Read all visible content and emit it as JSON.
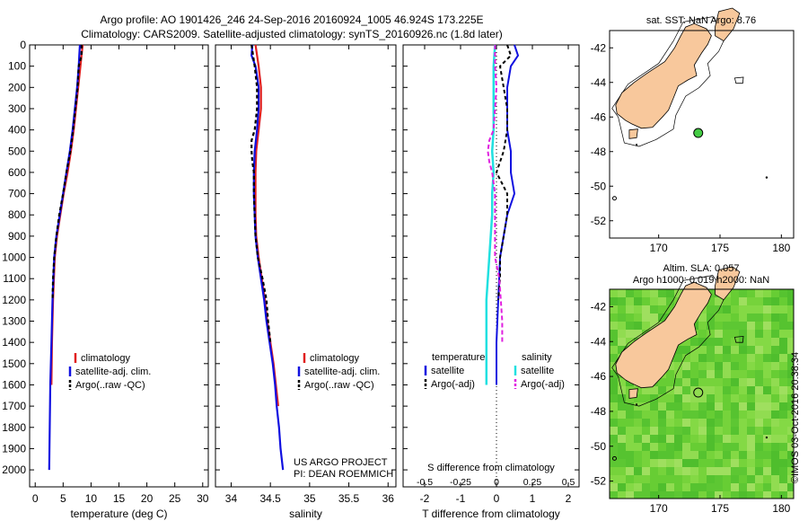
{
  "header": {
    "line1": "Argo profile: AO 1901426_246 24-Sep-2016 20160924_1005 46.924S 173.225E",
    "line2": "Climatology: CARS2009. Satellite-adjusted climatology: synTS_20160926.nc (1.8d later)"
  },
  "colors": {
    "climatology": "#e02020",
    "satellite": "#1010e0",
    "argo": "#000000",
    "sal_satellite": "#20e0e0",
    "sal_argo": "#e020e0",
    "land": "#f8c89c",
    "marker": "#44cc44",
    "sla_base": "#6ed03a"
  },
  "chart_data": [
    {
      "type": "line",
      "id": "temperature",
      "xlabel": "temperature (deg C)",
      "ylabel": "",
      "xlim": [
        -1,
        31
      ],
      "ylim": [
        2080,
        0
      ],
      "xticks": [
        "0",
        "5",
        "10",
        "15",
        "20",
        "25",
        "30"
      ],
      "yticks": [
        "0",
        "100",
        "200",
        "300",
        "400",
        "500",
        "600",
        "700",
        "800",
        "900",
        "1000",
        "1100",
        "1200",
        "1300",
        "1400",
        "1500",
        "1600",
        "1700",
        "1800",
        "1900",
        "2000"
      ],
      "legend": [
        "climatology",
        "satellite-adj. clim.",
        "Argo(..raw -QC)"
      ],
      "series": [
        {
          "name": "climatology",
          "depth": [
            0,
            50,
            100,
            200,
            300,
            400,
            500,
            600,
            700,
            800,
            900,
            1000,
            1200,
            1400,
            1600
          ],
          "values": [
            8.5,
            8.3,
            8.1,
            7.7,
            7.3,
            6.9,
            6.4,
            5.8,
            5.1,
            4.5,
            3.9,
            3.5,
            3.2,
            3.0,
            2.9
          ]
        },
        {
          "name": "satellite-adj. clim.",
          "depth": [
            0,
            50,
            100,
            200,
            300,
            400,
            500,
            600,
            700,
            800,
            900,
            1000,
            1200,
            1400,
            1600,
            1800,
            2000
          ],
          "values": [
            8.0,
            7.9,
            7.8,
            7.5,
            7.1,
            6.7,
            6.2,
            5.6,
            5.0,
            4.4,
            3.8,
            3.4,
            3.1,
            2.9,
            2.7,
            2.6,
            2.5
          ]
        },
        {
          "name": "Argo(..raw -QC)",
          "depth": [
            0,
            50,
            100,
            200,
            300,
            400,
            500,
            600,
            700,
            800,
            900,
            1000,
            1100,
            1200
          ],
          "values": [
            8.3,
            8.3,
            7.8,
            7.6,
            7.2,
            6.8,
            6.3,
            5.6,
            5.0,
            4.3,
            3.8,
            3.4,
            3.2,
            3.1
          ]
        }
      ]
    },
    {
      "type": "line",
      "id": "salinity",
      "xlabel": "salinity",
      "xlim": [
        33.8,
        36.1
      ],
      "ylim": [
        2080,
        0
      ],
      "xticks": [
        "34",
        "34.5",
        "35",
        "35.5",
        "36"
      ],
      "legend": [
        "climatology",
        "satellite-adj. clim.",
        "Argo(..raw -QC)"
      ],
      "annotation": [
        "US ARGO PROJECT",
        "PI: DEAN ROEMMICH"
      ],
      "series": [
        {
          "name": "climatology",
          "depth": [
            0,
            100,
            200,
            300,
            400,
            500,
            600,
            700,
            800,
            900,
            1000,
            1100,
            1200,
            1300,
            1400,
            1500,
            1600,
            1700
          ],
          "values": [
            34.31,
            34.35,
            34.38,
            34.38,
            34.35,
            34.32,
            34.31,
            34.31,
            34.31,
            34.32,
            34.35,
            34.39,
            34.43,
            34.46,
            34.5,
            34.54,
            34.57,
            34.6
          ]
        },
        {
          "name": "satellite-adj. clim.",
          "depth": [
            0,
            50,
            100,
            200,
            300,
            400,
            500,
            600,
            700,
            800,
            900,
            1000,
            1100,
            1200,
            1300,
            1400,
            1500,
            1600,
            1700,
            1800,
            1900,
            2000
          ],
          "values": [
            34.27,
            34.26,
            34.31,
            34.35,
            34.35,
            34.33,
            34.3,
            34.29,
            34.29,
            34.3,
            34.31,
            34.34,
            34.38,
            34.42,
            34.45,
            34.49,
            34.53,
            34.56,
            34.58,
            34.61,
            34.63,
            34.66
          ]
        },
        {
          "name": "Argo(..raw -QC)",
          "depth": [
            0,
            50,
            100,
            200,
            300,
            400,
            450,
            500,
            550,
            600,
            700,
            800,
            900,
            1000,
            1100,
            1200,
            1300,
            1400
          ],
          "values": [
            34.26,
            34.28,
            34.3,
            34.33,
            34.33,
            34.3,
            34.26,
            34.26,
            34.27,
            34.29,
            34.29,
            34.3,
            34.31,
            34.34,
            34.4,
            34.45,
            34.47,
            34.5
          ]
        }
      ]
    },
    {
      "type": "line",
      "id": "difference",
      "xlabel": "T difference from climatology",
      "xlabel_top": "S difference from climatology",
      "xlim": [
        -2.6,
        2.3
      ],
      "ylim": [
        2080,
        0
      ],
      "xticks": [
        "-2",
        "-1",
        "0",
        "1",
        "2"
      ],
      "xticks_top": [
        "-0.5",
        "-0.25",
        "0",
        "0.25",
        "0.5"
      ],
      "legend_left_title": "temperature",
      "legend_right_title": "salinity",
      "legend": [
        "satellite",
        "Argo(-adj)",
        "satellite",
        "Argo(-adj)"
      ],
      "series": [
        {
          "name": "T satellite",
          "depth": [
            0,
            50,
            100,
            200,
            300,
            400,
            500,
            600,
            700,
            800,
            900,
            1000,
            1200,
            1400,
            1600
          ],
          "values": [
            0.5,
            0.6,
            0.4,
            0.3,
            0.3,
            0.3,
            0.4,
            0.4,
            0.5,
            0.3,
            0.2,
            0.1,
            0.05,
            0.0,
            0.0
          ]
        },
        {
          "name": "T Argo(-adj)",
          "depth": [
            0,
            50,
            100,
            200,
            300,
            400,
            500,
            600,
            700,
            800,
            900,
            1000,
            1100,
            1200
          ],
          "values": [
            0.3,
            0.4,
            0.1,
            0.2,
            0.3,
            0.3,
            0.2,
            0.0,
            0.3,
            0.3,
            0.2,
            0.1,
            0.1,
            0.05
          ]
        },
        {
          "name": "S satellite",
          "depth": [
            0,
            100,
            200,
            300,
            400,
            500,
            600,
            700,
            800,
            900,
            1000,
            1100,
            1200,
            1300,
            1400,
            1500,
            1600
          ],
          "values": [
            -0.01,
            -0.02,
            -0.02,
            -0.02,
            -0.02,
            -0.03,
            -0.02,
            -0.03,
            -0.03,
            -0.04,
            -0.05,
            -0.06,
            -0.07,
            -0.07,
            -0.07,
            -0.07,
            -0.07
          ]
        },
        {
          "name": "S Argo(-adj)",
          "depth": [
            0,
            100,
            200,
            300,
            400,
            450,
            500,
            550,
            600,
            700,
            800,
            900,
            1000,
            1100,
            1200,
            1300,
            1400
          ],
          "values": [
            -0.01,
            -0.01,
            0.0,
            -0.01,
            -0.02,
            -0.05,
            -0.06,
            -0.05,
            -0.03,
            -0.01,
            -0.01,
            -0.01,
            -0.01,
            0.02,
            0.03,
            0.04,
            0.04
          ]
        }
      ]
    },
    {
      "type": "scatter",
      "id": "map_sst",
      "title": "sat. SST: NaN Argo: 8.76",
      "xlim": [
        166,
        181
      ],
      "ylim": [
        -53,
        -41
      ],
      "xticks": [
        "170",
        "175",
        "180"
      ],
      "yticks": [
        "-42",
        "-44",
        "-46",
        "-48",
        "-50",
        "-52"
      ],
      "marker": {
        "lon": 173.225,
        "lat": -46.924
      }
    },
    {
      "type": "heatmap",
      "id": "map_sla",
      "title_line1": "Altim. SLA: 0.057",
      "title_line2": "Argo h1000: 0.019 h2000: NaN",
      "xlim": [
        166,
        181
      ],
      "ylim": [
        -53,
        -41
      ],
      "xticks": [
        "170",
        "175",
        "180"
      ],
      "yticks": [
        "-42",
        "-44",
        "-46",
        "-48",
        "-50",
        "-52"
      ],
      "marker": {
        "lon": 173.225,
        "lat": -46.924
      }
    }
  ],
  "side_label": "©IMOS 03-Oct-2016 20:38:34"
}
